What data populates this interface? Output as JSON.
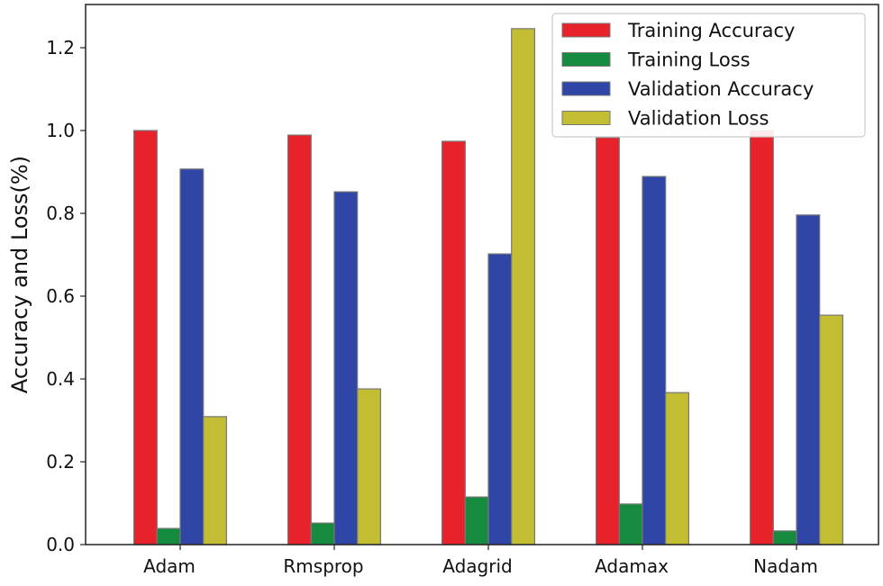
{
  "chart_data": {
    "type": "bar",
    "title": "",
    "xlabel": "",
    "ylabel": "Accuracy and Loss(%)",
    "ylim": [
      0,
      1.3
    ],
    "yticks": [
      "0.0",
      "0.2",
      "0.4",
      "0.6",
      "0.8",
      "1.0",
      "1.2"
    ],
    "categories": [
      "Adam",
      "Rmsprop",
      "Adagrid",
      "Adamax",
      "Nadam"
    ],
    "series": [
      {
        "name": "Training Accuracy",
        "color": "#e8222a",
        "values": [
          1.0,
          0.989,
          0.974,
          0.983,
          1.0
        ]
      },
      {
        "name": "Training Loss",
        "color": "#168a3e",
        "values": [
          0.039,
          0.052,
          0.115,
          0.098,
          0.033
        ]
      },
      {
        "name": "Validation Accuracy",
        "color": "#2f46a6",
        "values": [
          0.907,
          0.852,
          0.702,
          0.889,
          0.796
        ]
      },
      {
        "name": "Validation Loss",
        "color": "#c2bd32",
        "values": [
          0.309,
          0.376,
          1.246,
          0.367,
          0.554
        ]
      }
    ],
    "legend": "top-right",
    "grid": false
  }
}
